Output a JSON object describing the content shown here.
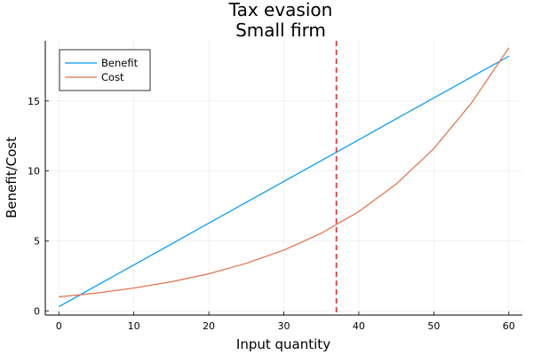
{
  "chart_data": {
    "type": "line",
    "title": "Tax evasion",
    "subtitle": "Small firm",
    "xlabel": "Input quantity",
    "ylabel": "Benefit/Cost",
    "xlim": [
      -1.8,
      61.8
    ],
    "ylim": [
      -0.3,
      19.3
    ],
    "xticks": [
      0,
      10,
      20,
      30,
      40,
      50,
      60
    ],
    "yticks": [
      0,
      5,
      10,
      15
    ],
    "grid": true,
    "legend_position": "top-left",
    "vline": {
      "x": 37,
      "color": "#e3292b",
      "style": "dashed"
    },
    "series": [
      {
        "name": "Benefit",
        "color": "#009af9",
        "x": [
          0,
          5,
          10,
          15,
          20,
          25,
          30,
          35,
          40,
          45,
          50,
          55,
          60
        ],
        "y": [
          0.3,
          1.79,
          3.28,
          4.77,
          6.27,
          7.76,
          9.25,
          10.74,
          12.23,
          13.73,
          15.22,
          16.71,
          18.2
        ]
      },
      {
        "name": "Cost",
        "color": "#e26f46",
        "x": [
          0,
          5,
          10,
          15,
          20,
          25,
          30,
          35,
          37,
          40,
          45,
          50,
          55,
          60
        ],
        "y": [
          1.0,
          1.27,
          1.63,
          2.08,
          2.65,
          3.4,
          4.34,
          5.55,
          6.17,
          7.1,
          9.07,
          11.6,
          14.84,
          18.8
        ]
      }
    ]
  }
}
